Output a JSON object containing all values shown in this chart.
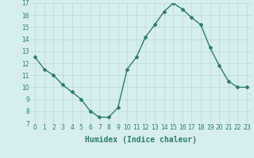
{
  "x": [
    0,
    1,
    2,
    3,
    4,
    5,
    6,
    7,
    8,
    9,
    10,
    11,
    12,
    13,
    14,
    15,
    16,
    17,
    18,
    19,
    20,
    21,
    22,
    23
  ],
  "y": [
    12.5,
    11.5,
    11.0,
    10.2,
    9.6,
    9.0,
    8.0,
    7.5,
    7.5,
    8.3,
    11.5,
    12.5,
    14.2,
    15.2,
    16.3,
    17.0,
    16.5,
    15.8,
    15.2,
    13.3,
    11.8,
    10.5,
    10.0,
    10.0
  ],
  "line_color": "#2e7d6e",
  "marker": "D",
  "marker_size": 2,
  "bg_color": "#d6eeee",
  "grid_color": "#b8d8d8",
  "xlabel": "Humidex (Indice chaleur)",
  "ylim": [
    7,
    17
  ],
  "xlim": [
    -0.5,
    23.5
  ],
  "yticks": [
    7,
    8,
    9,
    10,
    11,
    12,
    13,
    14,
    15,
    16,
    17
  ],
  "xticks": [
    0,
    1,
    2,
    3,
    4,
    5,
    6,
    7,
    8,
    9,
    10,
    11,
    12,
    13,
    14,
    15,
    16,
    17,
    18,
    19,
    20,
    21,
    22,
    23
  ],
  "tick_label_fontsize": 5.5,
  "xlabel_fontsize": 7,
  "line_width": 1.0
}
